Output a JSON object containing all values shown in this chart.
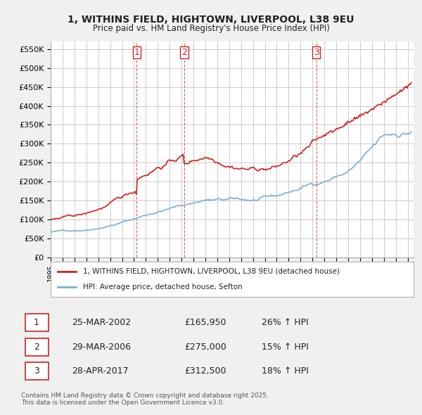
{
  "title_line1": "1, WITHINS FIELD, HIGHTOWN, LIVERPOOL, L38 9EU",
  "title_line2": "Price paid vs. HM Land Registry's House Price Index (HPI)",
  "ylabel_ticks": [
    "£0",
    "£50K",
    "£100K",
    "£150K",
    "£200K",
    "£250K",
    "£300K",
    "£350K",
    "£400K",
    "£450K",
    "£500K",
    "£550K"
  ],
  "ytick_values": [
    0,
    50000,
    100000,
    150000,
    200000,
    250000,
    300000,
    350000,
    400000,
    450000,
    500000,
    550000
  ],
  "ylim": [
    0,
    570000
  ],
  "sale_dates_num": [
    2002.23,
    2006.24,
    2017.32
  ],
  "sale_prices": [
    165950,
    275000,
    312500
  ],
  "sale_labels": [
    "1",
    "2",
    "3"
  ],
  "sale_pct": [
    "26% ↑ HPI",
    "15% ↑ HPI",
    "18% ↑ HPI"
  ],
  "sale_date_strs": [
    "25-MAR-2002",
    "29-MAR-2006",
    "28-APR-2017"
  ],
  "sale_price_strs": [
    "£165,950",
    "£275,000",
    "£312,500"
  ],
  "vline_color": "#cc0000",
  "vline_style": "--",
  "red_line_color": "#cc1111",
  "blue_line_color": "#6699cc",
  "background_color": "#f5f5f5",
  "plot_bg_color": "#ffffff",
  "grid_color": "#cccccc",
  "legend_label_red": "1, WITHINS FIELD, HIGHTOWN, LIVERPOOL, L38 9EU (detached house)",
  "legend_label_blue": "HPI: Average price, detached house, Sefton",
  "footer": "Contains HM Land Registry data © Crown copyright and database right 2025.\nThis data is licensed under the Open Government Licence v3.0.",
  "table_rows": [
    [
      "1",
      "25-MAR-2002",
      "£165,950",
      "26% ↑ HPI"
    ],
    [
      "2",
      "29-MAR-2006",
      "£275,000",
      "15% ↑ HPI"
    ],
    [
      "3",
      "28-APR-2017",
      "£312,500",
      "18% ↑ HPI"
    ]
  ]
}
